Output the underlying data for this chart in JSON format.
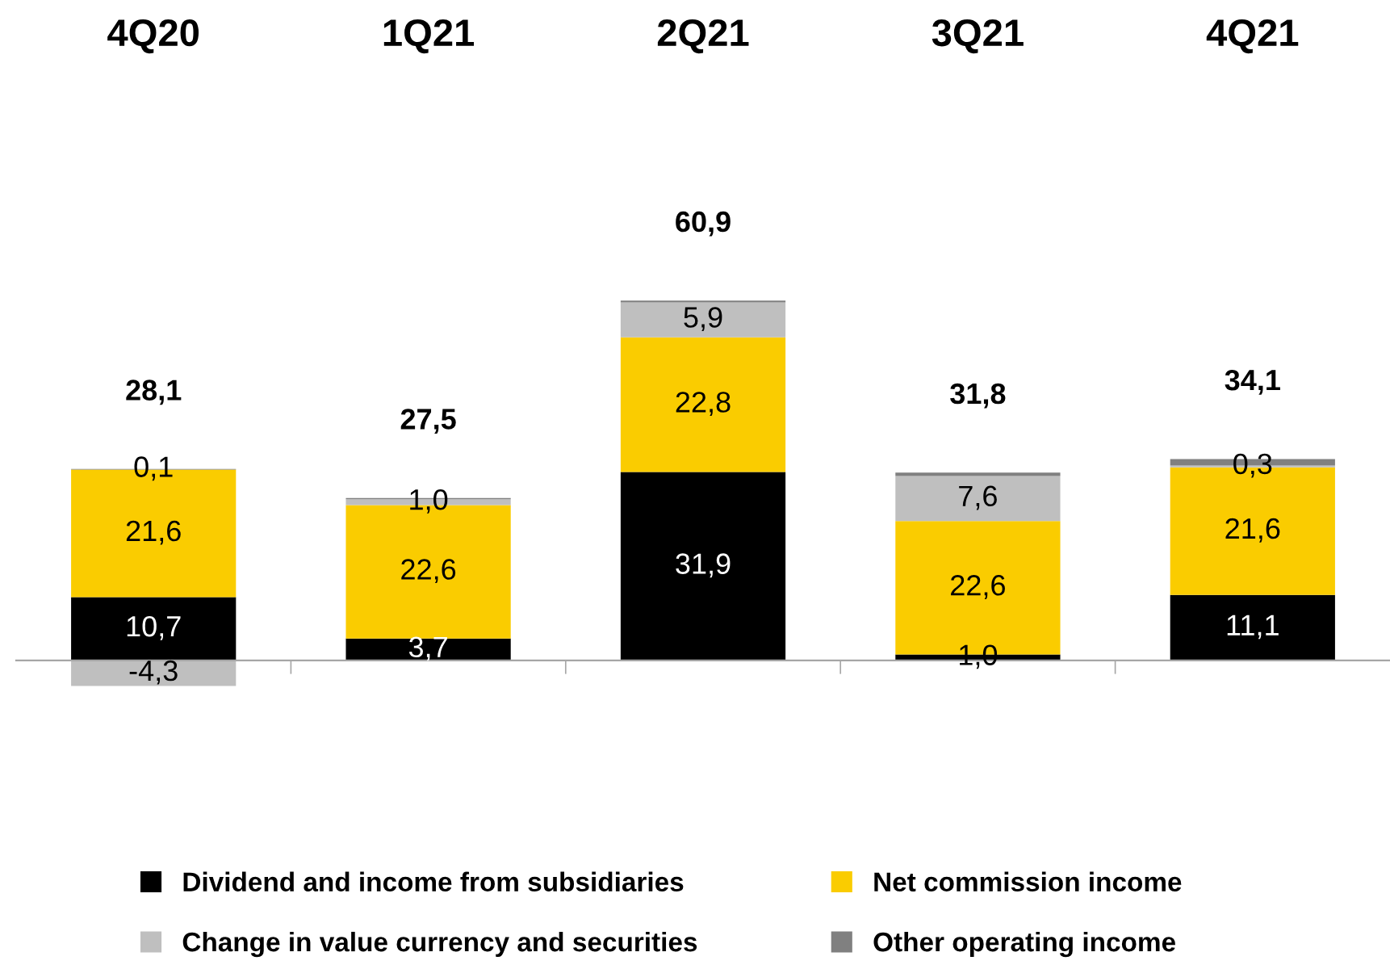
{
  "chart_data": {
    "type": "bar",
    "stacked": true,
    "categories": [
      "4Q20",
      "1Q21",
      "2Q21",
      "3Q21",
      "4Q21"
    ],
    "series": [
      {
        "name": "Dividend and income from subsidiaries",
        "color": "#000000",
        "values": [
          10.7,
          3.7,
          31.9,
          1.0,
          11.1
        ],
        "value_labels": [
          "10,7",
          "3,7",
          "31,9",
          "1,0",
          "11,1"
        ]
      },
      {
        "name": "Net commission income",
        "color": "#facc00",
        "values": [
          21.6,
          22.6,
          22.8,
          22.6,
          21.6
        ],
        "value_labels": [
          "21,6",
          "22,6",
          "22,8",
          "22,6",
          "21,6"
        ]
      },
      {
        "name": "Change in value currency and securities",
        "color": "#bfbfbf",
        "values": [
          -4.3,
          1.0,
          5.9,
          7.6,
          0.3
        ],
        "value_labels": [
          "-4,3",
          "1,0",
          "5,9",
          "7,6",
          "0,3"
        ]
      },
      {
        "name": "Other operating income",
        "color": "#808080",
        "values": [
          0.1,
          0.2,
          0.3,
          0.6,
          1.1
        ],
        "value_labels": [
          "0,1",
          null,
          null,
          null,
          null
        ]
      }
    ],
    "totals": [
      "28,1",
      "27,5",
      "60,9",
      "31,8",
      "34,1"
    ],
    "tick_labels": "x",
    "legend": "bottom",
    "grid": false
  }
}
